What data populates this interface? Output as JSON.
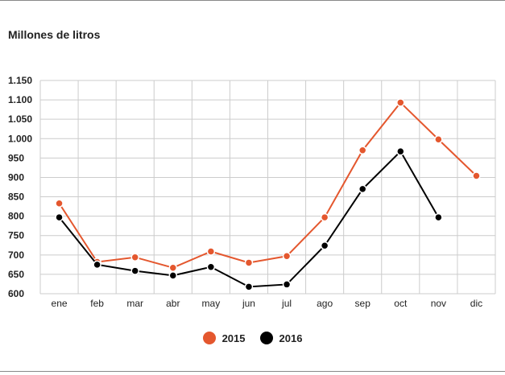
{
  "chart_data": {
    "type": "line",
    "ylabel": "Millones de litros",
    "categories": [
      "ene",
      "feb",
      "mar",
      "abr",
      "may",
      "jun",
      "jul",
      "ago",
      "sep",
      "oct",
      "nov",
      "dic"
    ],
    "ylim": [
      600,
      1150
    ],
    "yticks": [
      "600",
      "650",
      "700",
      "750",
      "800",
      "850",
      "900",
      "950",
      "1.000",
      "1.050",
      "1.100",
      "1.150"
    ],
    "grid": true,
    "legend_position": "bottom",
    "series": [
      {
        "name": "2015",
        "color": "#e4572e",
        "values": [
          833,
          682,
          694,
          667,
          709,
          680,
          697,
          797,
          970,
          1093,
          998,
          904
        ]
      },
      {
        "name": "2016",
        "color": "#000000",
        "values": [
          797,
          675,
          659,
          647,
          669,
          618,
          624,
          724,
          870,
          967,
          797,
          null
        ]
      }
    ]
  }
}
